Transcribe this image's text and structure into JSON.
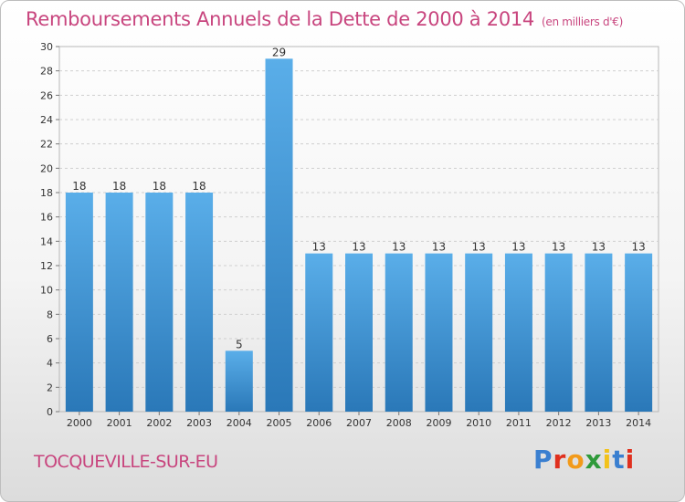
{
  "title": "Remboursements Annuels de la Dette de 2000 à 2014",
  "unit_note": "(en milliers d'€)",
  "commune": "TOCQUEVILLE-SUR-EU",
  "logo": {
    "letters": [
      "P",
      "r",
      "o",
      "x",
      "i",
      "t",
      "i"
    ],
    "colors": [
      "#3a7fd0",
      "#e0301e",
      "#f29a1a",
      "#2f9a3a",
      "#f2c21a",
      "#3a7fd0",
      "#e0301e"
    ]
  },
  "chart_data": {
    "type": "bar",
    "categories": [
      "2000",
      "2001",
      "2002",
      "2003",
      "2004",
      "2005",
      "2006",
      "2007",
      "2008",
      "2009",
      "2010",
      "2011",
      "2012",
      "2013",
      "2014"
    ],
    "values": [
      18,
      18,
      18,
      18,
      5,
      29,
      13,
      13,
      13,
      13,
      13,
      13,
      13,
      13,
      13
    ],
    "data_labels": [
      "18",
      "18",
      "18",
      "18",
      "5",
      "29",
      "13",
      "13",
      "13",
      "13",
      "13",
      "13",
      "13",
      "13",
      "13"
    ],
    "ylim": [
      0,
      30
    ],
    "yticks": [
      "0",
      "2",
      "4",
      "6",
      "8",
      "10",
      "12",
      "14",
      "16",
      "18",
      "20",
      "22",
      "24",
      "26",
      "28",
      "30"
    ],
    "grid": true,
    "bar_color_top": "#5aaee9",
    "bar_color_bottom": "#2a78b8"
  }
}
